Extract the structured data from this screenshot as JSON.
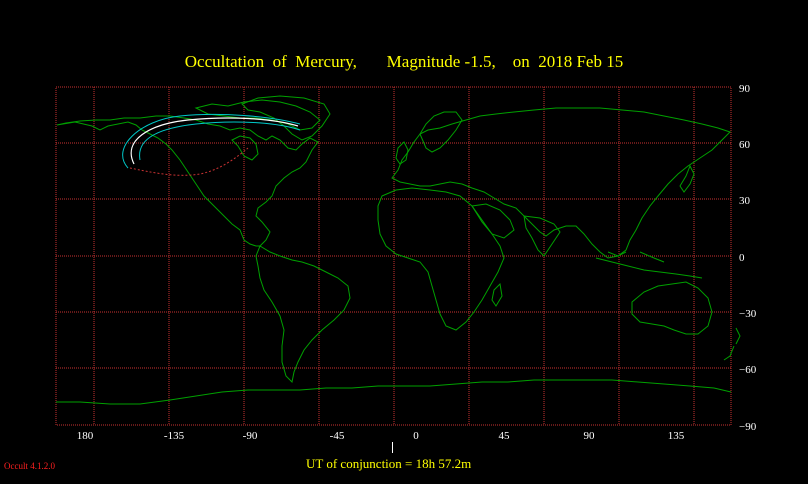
{
  "title": "Occultation  of  Mercury,       Magnitude -1.5,    on  2018 Feb 15",
  "axes": {
    "lon_ticks": [
      "180",
      "-135",
      "-90",
      "-45",
      "0",
      "45",
      "90",
      "135"
    ],
    "lat_ticks": [
      "90",
      "60",
      "30",
      "0",
      "−30",
      "−60",
      "−90"
    ]
  },
  "conjunction": "UT of conjunction = 18h 57.2m",
  "version": "Occult 4.1.2.0",
  "colors": {
    "background": "#000000",
    "grid": "#c83232",
    "coast": "#00a000",
    "path": "#ffffff",
    "path_edge": "#00c8c8",
    "title": "#ffff00"
  }
}
